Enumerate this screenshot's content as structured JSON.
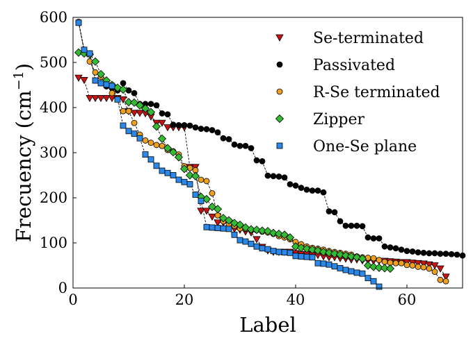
{
  "chart_data": {
    "type": "scatter",
    "xlabel": "Label",
    "ylabel_main": "Frecuency (cm",
    "ylabel_sup": "−1",
    "ylabel_close": ")",
    "xlim": [
      0,
      70
    ],
    "ylim": [
      0,
      600
    ],
    "xticks": [
      0,
      20,
      40,
      60
    ],
    "yticks": [
      0,
      100,
      200,
      300,
      400,
      500,
      600
    ],
    "grid": false,
    "legend_position": "top-right",
    "series": [
      {
        "name": "Se-terminated",
        "marker": "triangle-down",
        "color": "#cc1111",
        "x": [
          1,
          2,
          3,
          4,
          5,
          6,
          7,
          8,
          9,
          10,
          11,
          12,
          13,
          14,
          15,
          16,
          17,
          18,
          19,
          20,
          21,
          22,
          23,
          24,
          25,
          26,
          27,
          28,
          29,
          30,
          31,
          32,
          33,
          34,
          35,
          36,
          37,
          38,
          39,
          40,
          41,
          42,
          43,
          44,
          45,
          46,
          47,
          48,
          49,
          50,
          51,
          52,
          53,
          54,
          55,
          56,
          57,
          58,
          59,
          60,
          61,
          62,
          63,
          64,
          65,
          66,
          67
        ],
        "values": [
          466,
          461,
          421,
          421,
          421,
          421,
          421,
          421,
          418,
          392,
          388,
          388,
          387,
          380,
          366,
          366,
          356,
          356,
          356,
          356,
          268,
          268,
          171,
          171,
          158,
          145,
          145,
          140,
          131,
          129,
          125,
          123,
          108,
          91,
          83,
          80,
          80,
          80,
          80,
          77,
          75,
          75,
          73,
          73,
          70,
          68,
          68,
          66,
          65,
          63,
          63,
          61,
          61,
          60,
          60,
          60,
          59,
          58,
          57,
          57,
          56,
          55,
          54,
          52,
          50,
          43,
          25
        ]
      },
      {
        "name": "Passivated",
        "marker": "circle",
        "color": "#000000",
        "x": [
          1,
          2,
          3,
          4,
          5,
          6,
          7,
          8,
          9,
          10,
          11,
          12,
          13,
          14,
          15,
          16,
          17,
          18,
          19,
          20,
          21,
          22,
          23,
          24,
          25,
          26,
          27,
          28,
          29,
          30,
          31,
          32,
          33,
          34,
          35,
          36,
          37,
          38,
          39,
          40,
          41,
          42,
          43,
          44,
          45,
          46,
          47,
          48,
          49,
          50,
          51,
          52,
          53,
          54,
          55,
          56,
          57,
          58,
          59,
          60,
          61,
          62,
          63,
          64,
          65,
          66,
          67,
          68,
          69,
          70
        ],
        "values": [
          590,
          528,
          520,
          460,
          454,
          447,
          443,
          438,
          454,
          438,
          432,
          408,
          408,
          408,
          405,
          387,
          385,
          362,
          361,
          361,
          360,
          356,
          353,
          352,
          350,
          345,
          332,
          330,
          318,
          315,
          315,
          310,
          283,
          281,
          249,
          248,
          247,
          245,
          230,
          227,
          222,
          218,
          216,
          216,
          212,
          170,
          168,
          148,
          138,
          138,
          138,
          137,
          112,
          110,
          110,
          92,
          90,
          88,
          85,
          82,
          81,
          79,
          78,
          77,
          77,
          76,
          76,
          75,
          74,
          72
        ]
      },
      {
        "name": "R-Se terminated",
        "marker": "circle",
        "color": "#f0a020",
        "x": [
          1,
          2,
          3,
          4,
          5,
          6,
          7,
          8,
          9,
          10,
          11,
          12,
          13,
          14,
          15,
          16,
          17,
          18,
          19,
          20,
          21,
          22,
          23,
          24,
          25,
          26,
          27,
          28,
          29,
          30,
          31,
          32,
          33,
          34,
          35,
          36,
          37,
          38,
          39,
          40,
          41,
          42,
          43,
          44,
          45,
          46,
          47,
          48,
          49,
          50,
          51,
          52,
          53,
          54,
          55,
          56,
          57,
          58,
          59,
          60,
          61,
          62,
          63,
          64,
          65,
          66,
          67
        ],
        "values": [
          590,
          525,
          502,
          478,
          468,
          452,
          432,
          420,
          392,
          392,
          366,
          340,
          327,
          322,
          317,
          315,
          306,
          303,
          296,
          270,
          266,
          261,
          240,
          237,
          210,
          161,
          148,
          142,
          138,
          132,
          131,
          129,
          128,
          125,
          123,
          120,
          115,
          112,
          108,
          102,
          97,
          92,
          89,
          87,
          85,
          82,
          80,
          78,
          76,
          74,
          70,
          68,
          67,
          66,
          62,
          58,
          56,
          55,
          55,
          51,
          50,
          47,
          46,
          43,
          36,
          18,
          15
        ]
      },
      {
        "name": "Zipper",
        "marker": "diamond",
        "color": "#33bb33",
        "x": [
          1,
          2,
          3,
          4,
          5,
          6,
          7,
          8,
          9,
          10,
          11,
          12,
          13,
          14,
          15,
          16,
          17,
          18,
          19,
          20,
          21,
          22,
          23,
          24,
          25,
          26,
          27,
          28,
          29,
          30,
          31,
          32,
          33,
          34,
          35,
          36,
          37,
          38,
          39,
          40,
          41,
          42,
          43,
          44,
          45,
          46,
          47,
          48,
          49,
          50,
          51,
          52,
          53,
          54,
          55,
          56,
          57
        ],
        "values": [
          522,
          520,
          518,
          502,
          474,
          460,
          450,
          444,
          440,
          412,
          411,
          405,
          398,
          390,
          358,
          331,
          310,
          301,
          290,
          264,
          250,
          248,
          202,
          197,
          180,
          175,
          155,
          150,
          144,
          140,
          134,
          130,
          129,
          127,
          126,
          122,
          120,
          118,
          112,
          92,
          89,
          87,
          85,
          83,
          80,
          78,
          76,
          74,
          72,
          70,
          68,
          65,
          50,
          47,
          45,
          44,
          43
        ]
      },
      {
        "name": "One-Se plane",
        "marker": "square",
        "color": "#2a88e8",
        "x": [
          1,
          2,
          3,
          4,
          5,
          6,
          7,
          8,
          9,
          10,
          11,
          12,
          13,
          14,
          15,
          16,
          17,
          18,
          19,
          20,
          21,
          22,
          23,
          24,
          25,
          26,
          27,
          28,
          29,
          30,
          31,
          32,
          33,
          34,
          35,
          36,
          37,
          38,
          39,
          40,
          41,
          42,
          43,
          44,
          45,
          46,
          47,
          48,
          49,
          50,
          51,
          52,
          53,
          54,
          55
        ],
        "values": [
          588,
          528,
          520,
          460,
          454,
          451,
          448,
          418,
          360,
          348,
          342,
          332,
          296,
          285,
          271,
          260,
          255,
          250,
          240,
          235,
          230,
          207,
          193,
          135,
          134,
          133,
          132,
          131,
          118,
          106,
          103,
          98,
          92,
          88,
          86,
          82,
          80,
          79,
          78,
          71,
          70,
          69,
          68,
          55,
          54,
          52,
          48,
          44,
          40,
          37,
          34,
          32,
          22,
          15,
          3
        ]
      }
    ]
  }
}
